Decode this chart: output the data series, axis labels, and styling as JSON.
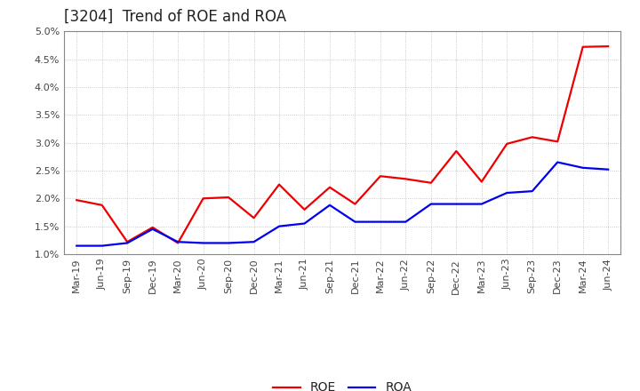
{
  "title": "[3204]  Trend of ROE and ROA",
  "x_labels": [
    "Mar-19",
    "Jun-19",
    "Sep-19",
    "Dec-19",
    "Mar-20",
    "Jun-20",
    "Sep-20",
    "Dec-20",
    "Mar-21",
    "Jun-21",
    "Sep-21",
    "Dec-21",
    "Mar-22",
    "Jun-22",
    "Sep-22",
    "Dec-22",
    "Mar-23",
    "Jun-23",
    "Sep-23",
    "Dec-23",
    "Mar-24",
    "Jun-24"
  ],
  "roe": [
    1.97,
    1.88,
    1.22,
    1.48,
    1.2,
    2.0,
    2.02,
    1.65,
    2.25,
    1.8,
    2.2,
    1.9,
    2.4,
    2.35,
    2.28,
    2.85,
    2.3,
    2.98,
    3.1,
    3.02,
    4.72,
    4.73
  ],
  "roa": [
    1.15,
    1.15,
    1.2,
    1.45,
    1.22,
    1.2,
    1.2,
    1.22,
    1.5,
    1.55,
    1.88,
    1.58,
    1.58,
    1.58,
    1.9,
    1.9,
    1.9,
    2.1,
    2.13,
    2.65,
    2.55,
    2.52
  ],
  "roe_color": "#ee0000",
  "roa_color": "#0000ee",
  "ylim": [
    1.0,
    5.0
  ],
  "yticks": [
    1.0,
    1.5,
    2.0,
    2.5,
    3.0,
    3.5,
    4.0,
    4.5,
    5.0
  ],
  "bg_color": "#ffffff",
  "grid_color": "#aaaaaa",
  "title_fontsize": 12,
  "tick_fontsize": 8,
  "legend_labels": [
    "ROE",
    "ROA"
  ],
  "legend_fontsize": 10
}
